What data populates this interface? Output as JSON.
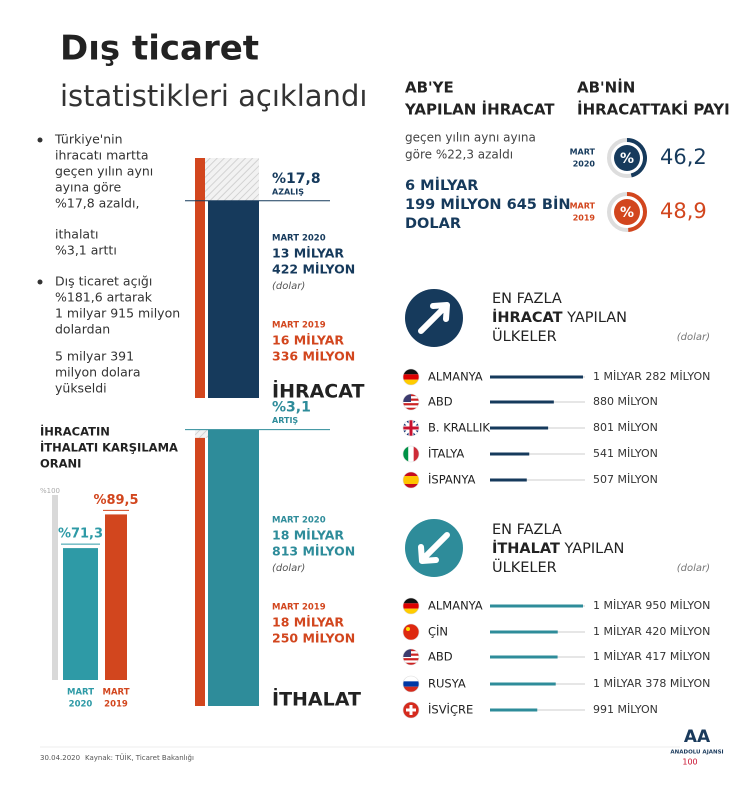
{
  "header": {
    "title": "Dış ticaret",
    "subtitle": "istatistikleri açıklandı"
  },
  "summary": [
    [
      "Türkiye'nin",
      "ihracatı martta",
      "geçen yılın aynı",
      "ayına göre",
      "%17,8 azaldı,"
    ],
    [
      "ithalatı",
      "%3,1 arttı"
    ],
    [
      "Dış ticaret açığı",
      "%181,6 artarak",
      "1 milyar 915 milyon",
      "dolardan"
    ],
    [
      "5 milyar 391",
      "milyon dolara",
      "yükseldi"
    ]
  ],
  "export": {
    "label": "İHRACAT",
    "change": "%17,8",
    "change_label": "AZALIŞ",
    "periods": [
      {
        "period": "MART 2020",
        "value_lines": [
          "13 MİLYAR",
          "422 MİLYON"
        ],
        "unit": "(dolar)",
        "value": 13422000000,
        "color": "#163a5c"
      },
      {
        "period": "MART 2019",
        "value_lines": [
          "16 MİLYAR",
          "336 MİLYON"
        ],
        "value": 16336000000,
        "color": "#d2461e"
      }
    ]
  },
  "import": {
    "label": "İTHALAT",
    "change": "%3,1",
    "change_label": "ARTIŞ",
    "periods": [
      {
        "period": "MART 2020",
        "value_lines": [
          "18 MİLYAR",
          "813 MİLYON"
        ],
        "unit": "(dolar)",
        "value": 18813000000,
        "color": "#2e8c9a"
      },
      {
        "period": "MART 2019",
        "value_lines": [
          "18 MİLYAR",
          "250 MİLYON"
        ],
        "value": 18250000000,
        "color": "#d2461e"
      }
    ]
  },
  "coverage": {
    "title": [
      "İHRACATIN",
      "İTHALATI KARŞILAMA",
      "ORANI"
    ],
    "ylim": [
      0,
      100
    ],
    "yticks": [
      {
        "value": 100,
        "label": "%100"
      }
    ],
    "bars": [
      {
        "period": [
          "MART",
          "2020"
        ],
        "value": 71.3,
        "value_label": "%71,3",
        "color": "#2e9aa6"
      },
      {
        "period": [
          "MART",
          "2019"
        ],
        "value": 89.5,
        "value_label": "%89,5",
        "color": "#d2461e"
      }
    ]
  },
  "eu_export": {
    "heading": [
      "AB'YE",
      "YAPILAN İHRACAT"
    ],
    "note": [
      "geçen yılın aynı ayına",
      "göre %22,3 azaldı"
    ],
    "amount": [
      "6 MİLYAR",
      "199 MİLYON 645 BİN",
      "DOLAR"
    ]
  },
  "eu_share": {
    "heading": [
      "AB'NİN",
      "İHRACATTAKİ PAYI"
    ],
    "icon": "%",
    "items": [
      {
        "period": [
          "MART",
          "2020"
        ],
        "value": 46.2,
        "value_label": "46,2",
        "color": "#163a5c"
      },
      {
        "period": [
          "MART",
          "2019"
        ],
        "value": 48.9,
        "value_label": "48,9",
        "color": "#d2461e"
      }
    ]
  },
  "top_exports": {
    "heading": [
      "EN FAZLA",
      [
        "İHRACAT",
        " YAPILAN"
      ],
      "ÜLKELER"
    ],
    "unit": "(dolar)",
    "color": "#163a5c",
    "countries": [
      {
        "name": "ALMANYA",
        "label": "1 MİLYAR 282 MİLYON",
        "value": 1282000000
      },
      {
        "name": "ABD",
        "label": "880 MİLYON",
        "value": 880000000
      },
      {
        "name": "B. KRALLIK",
        "label": "801 MİLYON",
        "value": 801000000
      },
      {
        "name": "İTALYA",
        "label": "541 MİLYON",
        "value": 541000000
      },
      {
        "name": "İSPANYA",
        "label": "507 MİLYON",
        "value": 507000000
      }
    ]
  },
  "top_imports": {
    "heading": [
      "EN FAZLA",
      [
        "İTHALAT",
        " YAPILAN"
      ],
      "ÜLKELER"
    ],
    "unit": "(dolar)",
    "color": "#2e8c9a",
    "countries": [
      {
        "name": "ALMANYA",
        "label": "1 MİLYAR 950 MİLYON",
        "value": 1950000000
      },
      {
        "name": "ÇİN",
        "label": "1 MİLYAR 420 MİLYON",
        "value": 1420000000
      },
      {
        "name": "ABD",
        "label": "1 MİLYAR 417 MİLYON",
        "value": 1417000000
      },
      {
        "name": "RUSYA",
        "label": "1 MİLYAR 378 MİLYON",
        "value": 1378000000
      },
      {
        "name": "İSVİÇRE",
        "label": "991 MİLYON",
        "value": 991000000
      }
    ]
  },
  "footer": {
    "date": "30.04.2020",
    "source": "Kaynak: TÜİK, Ticaret Bakanlığı",
    "logo": "AA",
    "agency": "ANADOLU AJANSI",
    "anniversary": "100"
  }
}
